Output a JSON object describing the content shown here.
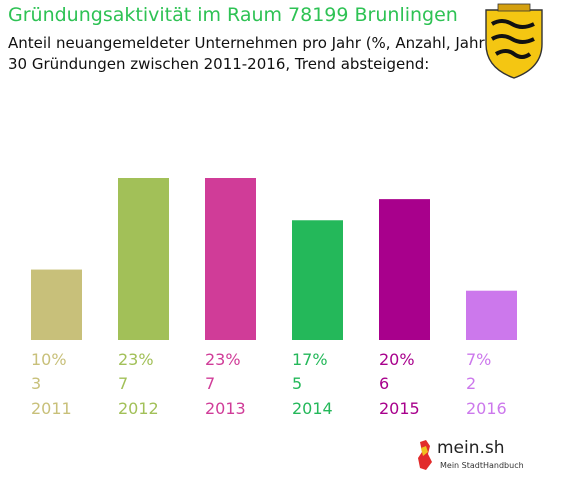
{
  "header": {
    "title": "Gründungsaktivität im Raum 78199 Brunlingen",
    "subtitle_line1": "Anteil neuangemeldeter Unternehmen pro Jahr (%, Anzahl, Jahr)",
    "subtitle_line2": "30 Gründungen zwischen 2011-2016, Trend absteigend:"
  },
  "colors": {
    "title": "#2ec254",
    "bars": [
      "#c8c07a",
      "#a2c058",
      "#d03c98",
      "#24b85a",
      "#a8008c",
      "#cc78ec"
    ]
  },
  "crest": {
    "icon": "baden-wuerttemberg-coat-of-arms-icon"
  },
  "logo": {
    "name": "mein.sh",
    "tagline": "Mein StadtHandbuch",
    "icon": "germany-map-icon"
  },
  "chart_data": {
    "type": "bar",
    "categories": [
      "2011",
      "2012",
      "2013",
      "2014",
      "2015",
      "2016"
    ],
    "percent_labels": [
      "10%",
      "23%",
      "23%",
      "17%",
      "20%",
      "7%"
    ],
    "counts": [
      3,
      7,
      7,
      5,
      6,
      2
    ],
    "percent_values": [
      10,
      23,
      23,
      17,
      20,
      7
    ],
    "title": "Gründungsaktivität im Raum 78199 Brunlingen",
    "xlabel": "",
    "ylabel": "",
    "grid": false,
    "legend": "none"
  }
}
